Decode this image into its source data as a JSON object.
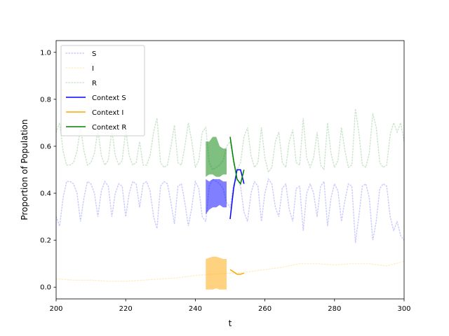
{
  "chart_data": {
    "type": "line",
    "xlabel": "t",
    "ylabel": "Proportion of Population",
    "xlim": [
      200,
      300
    ],
    "ylim": [
      -0.05,
      1.05
    ],
    "xticks": [
      200,
      220,
      240,
      260,
      280,
      300
    ],
    "xtick_labels": [
      "200",
      "220",
      "240",
      "260",
      "280",
      "300"
    ],
    "yticks": [
      0.0,
      0.2,
      0.4,
      0.6,
      0.8,
      1.0
    ],
    "ytick_labels": [
      "0.0",
      "0.2",
      "0.4",
      "0.6",
      "0.8",
      "1.0"
    ],
    "grid": false,
    "legend_position": "top-left",
    "colors": {
      "S": "#0000ff",
      "I": "#ffa500",
      "R": "#008000"
    },
    "series": [
      {
        "name": "S",
        "style": "dotted",
        "color": "#0000ff",
        "x": [
          200,
          201,
          202,
          203,
          204,
          205,
          206,
          207,
          208,
          209,
          210,
          211,
          212,
          213,
          214,
          215,
          216,
          217,
          218,
          219,
          220,
          221,
          222,
          223,
          224,
          225,
          226,
          227,
          228,
          229,
          230,
          231,
          232,
          233,
          234,
          235,
          236,
          237,
          238,
          239,
          240,
          241,
          242,
          243,
          244,
          245,
          246,
          247,
          248,
          249,
          250,
          251,
          252,
          253,
          254,
          255,
          256,
          257,
          258,
          259,
          260,
          261,
          262,
          263,
          264,
          265,
          266,
          267,
          268,
          269,
          270,
          271,
          272,
          273,
          274,
          275,
          276,
          277,
          278,
          279,
          280,
          281,
          282,
          283,
          284,
          285,
          286,
          287,
          288,
          289,
          290,
          291,
          292,
          293,
          294,
          295,
          296,
          297,
          298,
          299,
          300
        ],
        "y": [
          0.3,
          0.26,
          0.38,
          0.45,
          0.45,
          0.44,
          0.4,
          0.28,
          0.38,
          0.45,
          0.44,
          0.4,
          0.3,
          0.41,
          0.45,
          0.43,
          0.3,
          0.4,
          0.44,
          0.43,
          0.3,
          0.4,
          0.45,
          0.44,
          0.34,
          0.44,
          0.45,
          0.41,
          0.3,
          0.25,
          0.43,
          0.45,
          0.44,
          0.36,
          0.27,
          0.43,
          0.44,
          0.36,
          0.26,
          0.34,
          0.45,
          0.42,
          0.3,
          0.28,
          0.43,
          0.46,
          0.45,
          0.44,
          0.42,
          0.36,
          0.34,
          0.44,
          0.46,
          0.43,
          0.32,
          0.28,
          0.4,
          0.45,
          0.43,
          0.28,
          0.4,
          0.46,
          0.44,
          0.34,
          0.3,
          0.42,
          0.44,
          0.33,
          0.28,
          0.42,
          0.43,
          0.24,
          0.4,
          0.44,
          0.4,
          0.3,
          0.43,
          0.45,
          0.26,
          0.38,
          0.44,
          0.41,
          0.28,
          0.37,
          0.44,
          0.43,
          0.19,
          0.3,
          0.43,
          0.44,
          0.38,
          0.2,
          0.28,
          0.42,
          0.44,
          0.43,
          0.3,
          0.24,
          0.28,
          0.22,
          0.2
        ]
      },
      {
        "name": "I",
        "style": "dotted",
        "color": "#ffa500",
        "x": [
          200,
          205,
          210,
          215,
          220,
          225,
          230,
          235,
          240,
          245,
          250,
          255,
          260,
          265,
          270,
          275,
          280,
          285,
          290,
          295,
          300
        ],
        "y": [
          0.035,
          0.03,
          0.03,
          0.025,
          0.025,
          0.03,
          0.035,
          0.04,
          0.05,
          0.055,
          0.06,
          0.065,
          0.075,
          0.085,
          0.1,
          0.1,
          0.095,
          0.1,
          0.1,
          0.09,
          0.11
        ]
      },
      {
        "name": "R",
        "style": "dotted",
        "color": "#008000",
        "x": [
          200,
          201,
          202,
          203,
          204,
          205,
          206,
          207,
          208,
          209,
          210,
          211,
          212,
          213,
          214,
          215,
          216,
          217,
          218,
          219,
          220,
          221,
          222,
          223,
          224,
          225,
          226,
          227,
          228,
          229,
          230,
          231,
          232,
          233,
          234,
          235,
          236,
          237,
          238,
          239,
          240,
          241,
          242,
          243,
          244,
          245,
          246,
          247,
          248,
          249,
          250,
          251,
          252,
          253,
          254,
          255,
          256,
          257,
          258,
          259,
          260,
          261,
          262,
          263,
          264,
          265,
          266,
          267,
          268,
          269,
          270,
          271,
          272,
          273,
          274,
          275,
          276,
          277,
          278,
          279,
          280,
          281,
          282,
          283,
          284,
          285,
          286,
          287,
          288,
          289,
          290,
          291,
          292,
          293,
          294,
          295,
          296,
          297,
          298,
          299,
          300
        ],
        "y": [
          0.66,
          0.7,
          0.58,
          0.52,
          0.52,
          0.53,
          0.58,
          0.68,
          0.58,
          0.52,
          0.53,
          0.57,
          0.67,
          0.56,
          0.52,
          0.54,
          0.67,
          0.56,
          0.52,
          0.54,
          0.67,
          0.56,
          0.52,
          0.53,
          0.62,
          0.52,
          0.52,
          0.56,
          0.66,
          0.72,
          0.53,
          0.51,
          0.52,
          0.6,
          0.69,
          0.53,
          0.52,
          0.6,
          0.7,
          0.62,
          0.51,
          0.54,
          0.66,
          0.68,
          0.53,
          0.5,
          0.51,
          0.52,
          0.54,
          0.6,
          0.62,
          0.52,
          0.5,
          0.53,
          0.64,
          0.68,
          0.56,
          0.51,
          0.53,
          0.68,
          0.55,
          0.49,
          0.51,
          0.62,
          0.66,
          0.53,
          0.51,
          0.62,
          0.67,
          0.53,
          0.52,
          0.72,
          0.55,
          0.51,
          0.55,
          0.66,
          0.52,
          0.5,
          0.7,
          0.57,
          0.51,
          0.54,
          0.68,
          0.58,
          0.51,
          0.52,
          0.76,
          0.66,
          0.52,
          0.51,
          0.57,
          0.74,
          0.68,
          0.53,
          0.51,
          0.52,
          0.65,
          0.7,
          0.66,
          0.7,
          0.62
        ]
      },
      {
        "name": "Context S",
        "style": "solid",
        "color": "#0000ff",
        "x": [
          250,
          251,
          252,
          253,
          254
        ],
        "y": [
          0.29,
          0.42,
          0.5,
          0.5,
          0.44
        ]
      },
      {
        "name": "Context I",
        "style": "solid",
        "color": "#ffa500",
        "x": [
          250,
          251,
          252,
          253,
          254
        ],
        "y": [
          0.075,
          0.065,
          0.055,
          0.055,
          0.06
        ]
      },
      {
        "name": "Context R",
        "style": "solid",
        "color": "#008000",
        "x": [
          250,
          251,
          252,
          253,
          254
        ],
        "y": [
          0.64,
          0.54,
          0.46,
          0.44,
          0.5
        ]
      }
    ],
    "bands": [
      {
        "series": "S",
        "color": "#0000ff",
        "opacity": 0.5,
        "x": [
          243,
          244,
          245,
          246,
          247,
          248,
          249
        ],
        "lower": [
          0.31,
          0.33,
          0.34,
          0.34,
          0.35,
          0.34,
          0.34
        ],
        "upper": [
          0.46,
          0.45,
          0.46,
          0.46,
          0.46,
          0.45,
          0.45
        ]
      },
      {
        "series": "I",
        "color": "#ffa500",
        "opacity": 0.5,
        "x": [
          243,
          244,
          245,
          246,
          247,
          248,
          249
        ],
        "lower": [
          -0.01,
          -0.01,
          -0.01,
          -0.005,
          -0.01,
          -0.01,
          -0.01
        ],
        "upper": [
          0.12,
          0.125,
          0.13,
          0.13,
          0.125,
          0.12,
          0.12
        ]
      },
      {
        "series": "R",
        "color": "#008000",
        "opacity": 0.5,
        "x": [
          243,
          244,
          245,
          246,
          247,
          248,
          249
        ],
        "lower": [
          0.47,
          0.48,
          0.48,
          0.47,
          0.47,
          0.48,
          0.48
        ],
        "upper": [
          0.62,
          0.62,
          0.64,
          0.64,
          0.6,
          0.59,
          0.59
        ]
      }
    ]
  }
}
